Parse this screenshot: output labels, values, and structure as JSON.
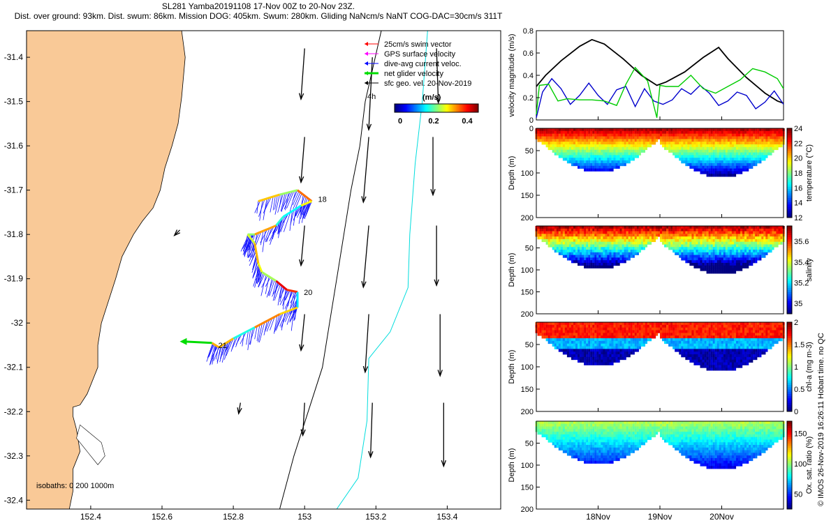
{
  "header": {
    "line1": "SL281 Yamba20191108 17-Nov 00Z to 20-Nov 23Z.",
    "line2": "Dist. over ground: 93km. Dist. swum: 86km. Mission DOG: 405km. Swum: 280km. Gliding NaNcm/s NaNT COG-DAC=30cm/s 311T"
  },
  "credit": "© IMOS 26-Nov-2019 16:26:11 Hobart time. no QC",
  "colors": {
    "land": "#f9c997",
    "glider_track": "#1010ff",
    "net_velocity": "#00dd00",
    "speed_line": "#000000",
    "dac_line": "#0000cc",
    "gps_line": "#00cc00",
    "iso200": "#000000",
    "iso1000": "#00dddd"
  },
  "chart_data": [
    {
      "id": "map",
      "type": "scatter",
      "xlim": [
        152.22,
        153.55
      ],
      "ylim": [
        -32.42,
        -31.34
      ],
      "xticks": [
        152.4,
        152.6,
        152.8,
        153,
        153.2,
        153.4
      ],
      "yticks": [
        -31.4,
        -31.5,
        -31.6,
        -31.7,
        -31.8,
        -31.9,
        -32,
        -32.1,
        -32.2,
        -32.3,
        -32.4
      ],
      "legend": {
        "items": [
          "25cm/s swim vector",
          "GPS surface velocity",
          "dive-avg current veloc.",
          "net glider velocity",
          "sfc geo. vel. 20-Nov-2019"
        ],
        "item_colors": [
          "#ff0000",
          "#ff00ff",
          "#0000ff",
          "#00dd00",
          "#000000"
        ],
        "extra": "4h",
        "colorbar_title": "(m/s)",
        "colorbar_ticks": [
          "0",
          "0.2",
          "0.4"
        ],
        "colorbar_range": [
          0,
          0.5
        ]
      },
      "isobaths": "isobaths: 0   200  1000m",
      "day_labels": [
        {
          "text": "18",
          "lon": 153.03,
          "lat": -31.72
        },
        {
          "text": "20",
          "lon": 152.99,
          "lat": -31.93
        },
        {
          "text": "21",
          "lon": 152.75,
          "lat": -32.05
        }
      ],
      "track": [
        [
          152.87,
          -31.725
        ],
        [
          152.93,
          -31.71
        ],
        [
          152.98,
          -31.7
        ],
        [
          153.02,
          -31.725
        ],
        [
          152.99,
          -31.735
        ],
        [
          152.94,
          -31.76
        ],
        [
          152.92,
          -31.78
        ],
        [
          152.86,
          -31.8
        ],
        [
          152.84,
          -31.8
        ],
        [
          152.86,
          -31.82
        ],
        [
          152.87,
          -31.865
        ],
        [
          152.88,
          -31.885
        ],
        [
          152.92,
          -31.905
        ],
        [
          152.95,
          -31.925
        ],
        [
          152.98,
          -31.93
        ],
        [
          152.98,
          -31.965
        ],
        [
          152.93,
          -31.98
        ],
        [
          152.86,
          -32.01
        ],
        [
          152.8,
          -32.035
        ],
        [
          152.76,
          -32.055
        ],
        [
          152.74,
          -32.045
        ]
      ],
      "coast": [
        [
          152.22,
          -31.34
        ],
        [
          152.655,
          -31.34
        ],
        [
          152.665,
          -31.4
        ],
        [
          152.655,
          -31.49
        ],
        [
          152.645,
          -31.55
        ],
        [
          152.628,
          -31.6
        ],
        [
          152.608,
          -31.65
        ],
        [
          152.595,
          -31.7
        ],
        [
          152.575,
          -31.74
        ],
        [
          152.545,
          -31.77
        ],
        [
          152.52,
          -31.8
        ],
        [
          152.488,
          -31.85
        ],
        [
          152.47,
          -31.9
        ],
        [
          152.45,
          -31.95
        ],
        [
          152.43,
          -32.0
        ],
        [
          152.42,
          -32.05
        ],
        [
          152.42,
          -32.1
        ],
        [
          152.39,
          -32.16
        ],
        [
          152.37,
          -32.185
        ],
        [
          152.35,
          -32.19
        ],
        [
          152.35,
          -32.21
        ],
        [
          152.36,
          -32.24
        ],
        [
          152.37,
          -32.29
        ],
        [
          152.35,
          -32.33
        ],
        [
          152.35,
          -32.38
        ],
        [
          152.34,
          -32.42
        ],
        [
          152.22,
          -32.42
        ]
      ],
      "iso200": [
        [
          153.215,
          -31.34
        ],
        [
          153.17,
          -31.5
        ],
        [
          153.155,
          -31.6
        ],
        [
          153.13,
          -31.7
        ],
        [
          153.11,
          -31.8
        ],
        [
          153.09,
          -31.9
        ],
        [
          153.07,
          -32.0
        ],
        [
          153.05,
          -32.1
        ],
        [
          153.01,
          -32.2
        ],
        [
          152.97,
          -32.3
        ],
        [
          152.93,
          -32.42
        ]
      ],
      "iso1000": [
        [
          153.345,
          -31.34
        ],
        [
          153.33,
          -31.5
        ],
        [
          153.31,
          -31.64
        ],
        [
          153.295,
          -31.8
        ],
        [
          153.29,
          -31.92
        ],
        [
          153.24,
          -32.02
        ],
        [
          153.18,
          -32.08
        ],
        [
          153.175,
          -32.22
        ],
        [
          153.15,
          -32.35
        ],
        [
          153.09,
          -32.42
        ]
      ],
      "geo_vectors": [
        {
          "lon": 153.0,
          "lat": -31.38,
          "u": -0.02,
          "v": -0.28
        },
        {
          "lon": 153.19,
          "lat": -31.4,
          "u": -0.02,
          "v": -0.4
        },
        {
          "lon": 153.37,
          "lat": -31.38,
          "u": 0.01,
          "v": -0.3
        },
        {
          "lon": 153.0,
          "lat": -31.58,
          "u": -0.02,
          "v": -0.25
        },
        {
          "lon": 153.18,
          "lat": -31.58,
          "u": -0.03,
          "v": -0.36
        },
        {
          "lon": 153.36,
          "lat": -31.58,
          "u": 0.0,
          "v": -0.32
        },
        {
          "lon": 153.0,
          "lat": -31.78,
          "u": -0.02,
          "v": -0.22
        },
        {
          "lon": 153.18,
          "lat": -31.78,
          "u": -0.03,
          "v": -0.34
        },
        {
          "lon": 153.37,
          "lat": -31.78,
          "u": 0.0,
          "v": -0.33
        },
        {
          "lon": 153.0,
          "lat": -31.98,
          "u": -0.02,
          "v": -0.2
        },
        {
          "lon": 153.18,
          "lat": -31.98,
          "u": -0.02,
          "v": -0.32
        },
        {
          "lon": 153.38,
          "lat": -31.98,
          "u": 0.0,
          "v": -0.34
        },
        {
          "lon": 153.0,
          "lat": -32.18,
          "u": -0.01,
          "v": -0.18
        },
        {
          "lon": 153.19,
          "lat": -32.18,
          "u": -0.01,
          "v": -0.3
        },
        {
          "lon": 153.39,
          "lat": -32.18,
          "u": 0.0,
          "v": -0.35
        },
        {
          "lon": 152.82,
          "lat": -32.18,
          "u": -0.01,
          "v": -0.06
        },
        {
          "lon": 152.65,
          "lat": -31.79,
          "u": -0.03,
          "v": -0.03
        }
      ]
    },
    {
      "id": "velocity",
      "type": "line",
      "ylabel": "velocity magnitude (m/s)",
      "xlim": [
        0,
        4
      ],
      "ylim": [
        0,
        0.8
      ],
      "yticks": [
        0,
        0.2,
        0.4,
        0.6,
        0.8
      ],
      "xticks": [
        1,
        2,
        3
      ],
      "xticklabels": [
        "18Nov",
        "19Nov",
        "20Nov"
      ],
      "series": [
        {
          "color": "#000000",
          "x": [
            0,
            0.15,
            0.4,
            0.7,
            0.9,
            1.1,
            1.4,
            1.7,
            1.95,
            2.1,
            2.4,
            2.7,
            2.95,
            3.1,
            3.4,
            3.7,
            3.9,
            4.0
          ],
          "y": [
            0.3,
            0.4,
            0.53,
            0.66,
            0.72,
            0.68,
            0.55,
            0.4,
            0.31,
            0.34,
            0.43,
            0.56,
            0.65,
            0.55,
            0.38,
            0.24,
            0.17,
            0.15
          ]
        },
        {
          "color": "#0000cc",
          "x": [
            0,
            0.1,
            0.25,
            0.4,
            0.55,
            0.7,
            0.85,
            1.0,
            1.15,
            1.3,
            1.45,
            1.6,
            1.75,
            1.9,
            2.05,
            2.2,
            2.35,
            2.5,
            2.65,
            2.8,
            2.95,
            3.1,
            3.25,
            3.4,
            3.55,
            3.7,
            3.85,
            4.0
          ],
          "y": [
            0.02,
            0.25,
            0.37,
            0.28,
            0.14,
            0.22,
            0.33,
            0.22,
            0.14,
            0.27,
            0.3,
            0.12,
            0.28,
            0.17,
            0.14,
            0.18,
            0.28,
            0.23,
            0.31,
            0.24,
            0.13,
            0.17,
            0.25,
            0.22,
            0.1,
            0.16,
            0.26,
            0.14
          ]
        },
        {
          "color": "#00cc00",
          "x": [
            0,
            0.05,
            0.2,
            0.35,
            0.5,
            0.7,
            0.9,
            1.1,
            1.3,
            1.45,
            1.6,
            1.8,
            1.95,
            2.0,
            2.1,
            2.3,
            2.5,
            2.7,
            2.9,
            3.1,
            3.3,
            3.5,
            3.7,
            3.9,
            4.0
          ],
          "y": [
            0.05,
            0.31,
            0.32,
            0.17,
            0.19,
            0.18,
            0.18,
            0.17,
            0.13,
            0.32,
            0.47,
            0.35,
            0.02,
            0.31,
            0.3,
            0.3,
            0.4,
            0.28,
            0.24,
            0.3,
            0.36,
            0.46,
            0.43,
            0.37,
            0.28
          ]
        }
      ]
    },
    {
      "id": "temperature",
      "type": "heatmap",
      "ylabel": "Depth (m)",
      "clabel": "temperature (°C)",
      "ylim": [
        0,
        200
      ],
      "yticks": [
        0,
        50,
        100,
        150,
        200
      ],
      "clim": [
        12,
        24
      ],
      "cticks": [
        12,
        14,
        16,
        18,
        20,
        22,
        24
      ],
      "palette": "jet"
    },
    {
      "id": "salinity",
      "type": "heatmap",
      "ylabel": "Depth (m)",
      "clabel": "salinity",
      "ylim": [
        0,
        200
      ],
      "yticks": [
        50,
        100,
        150,
        200
      ],
      "clim": [
        34.9,
        35.75
      ],
      "cticks": [
        35,
        35.2,
        35.4,
        35.6
      ],
      "palette": "jet"
    },
    {
      "id": "chla",
      "type": "heatmap",
      "ylabel": "Depth (m)",
      "clabel": "chl-a (mg m-3)",
      "ylim": [
        0,
        200
      ],
      "yticks": [
        50,
        100,
        150,
        200
      ],
      "clim": [
        0,
        2
      ],
      "cticks": [
        0,
        0.5,
        1,
        1.5,
        2
      ],
      "palette": "jet"
    },
    {
      "id": "oxygen",
      "type": "heatmap",
      "ylabel": "Depth (m)",
      "clabel": "Ox. sat. ratio (%)",
      "ylim": [
        0,
        200
      ],
      "yticks": [
        50,
        100,
        150,
        200
      ],
      "clim": [
        25,
        170
      ],
      "cticks": [
        50,
        100,
        150
      ],
      "palette": "jet",
      "xticks": [
        1,
        2,
        3
      ],
      "xticklabels": [
        "18Nov",
        "19Nov",
        "20Nov"
      ]
    }
  ]
}
